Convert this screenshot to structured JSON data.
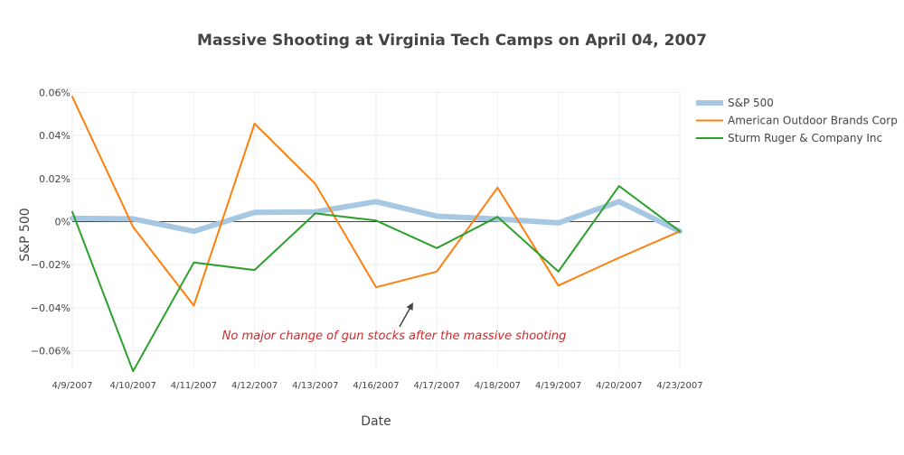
{
  "chart_data": {
    "type": "line",
    "title": "Massive Shooting at Virginia Tech Camps on April 04, 2007",
    "xlabel": "Date",
    "ylabel": "S&P 500",
    "categories": [
      "4/9/2007",
      "4/10/2007",
      "4/11/2007",
      "4/12/2007",
      "4/13/2007",
      "4/16/2007",
      "4/17/2007",
      "4/18/2007",
      "4/19/2007",
      "4/20/2007",
      "4/23/2007"
    ],
    "ylim": [
      -0.069,
      0.061
    ],
    "yticks": [
      0.06,
      0.04,
      0.02,
      0,
      -0.02,
      -0.04,
      -0.06
    ],
    "ytick_labels": [
      "0.06%",
      "0.04%",
      "0.02%",
      "0%",
      "−0.02%",
      "−0.04%",
      "−0.06%"
    ],
    "grid": true,
    "legend_position": "top-right",
    "series": [
      {
        "name": "S&P 500",
        "color": "#a6c8e3",
        "width": "thick",
        "values": [
          0.0015,
          0.0013,
          -0.0045,
          0.0043,
          0.0045,
          0.0093,
          0.0025,
          0.0012,
          -0.0006,
          0.0093,
          -0.0045
        ]
      },
      {
        "name": "American Outdoor Brands Corp",
        "color": "#ff7f0e",
        "width": "normal",
        "values": [
          0.058,
          -0.0025,
          -0.039,
          0.0455,
          0.0175,
          -0.0305,
          -0.0232,
          0.0158,
          -0.0297,
          -0.0168,
          -0.0045
        ]
      },
      {
        "name": "Sturm Ruger & Company Inc",
        "color": "#2ca02c",
        "width": "normal",
        "values": [
          0.0045,
          -0.0695,
          -0.019,
          -0.0225,
          0.0038,
          0.0005,
          -0.0123,
          0.0022,
          -0.0232,
          0.0165,
          -0.0045
        ]
      }
    ],
    "annotation": {
      "text": "No major change of gun stocks after the massive shooting",
      "color": "#d62728",
      "arrow_at": {
        "x": "4/16/2007",
        "y": -0.0375
      }
    }
  }
}
